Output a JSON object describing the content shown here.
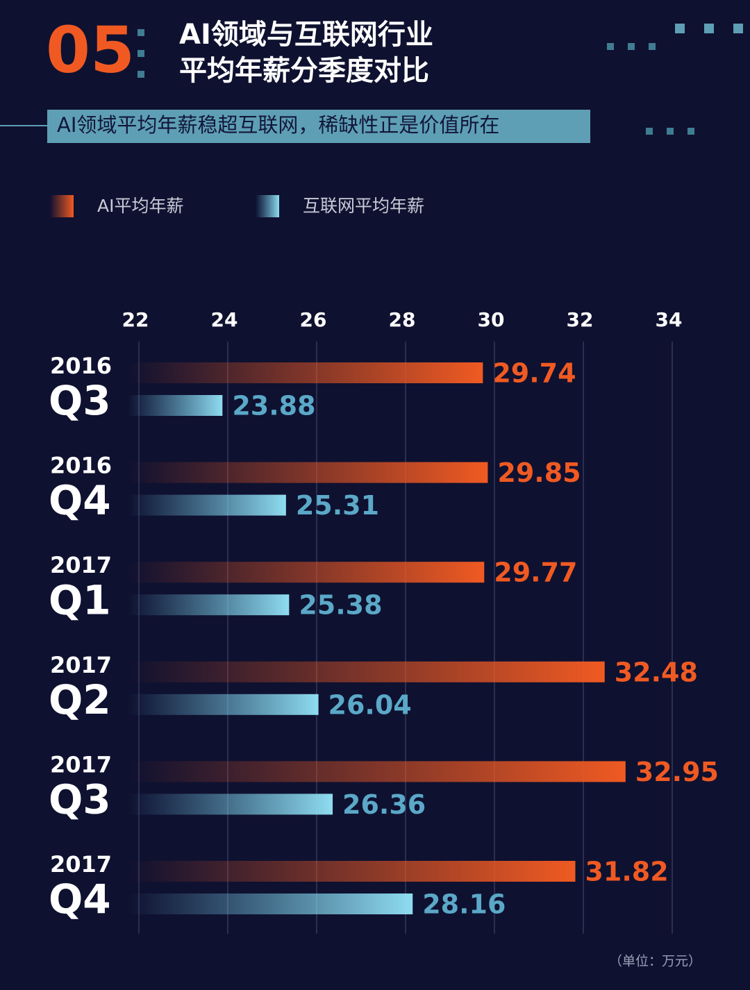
{
  "chart_data": {
    "type": "bar",
    "orientation": "horizontal",
    "section_number": "05",
    "title": [
      "AI领域与互联网行业",
      "平均年薪分季度对比"
    ],
    "subtitle": "AI领域平均年薪稳超互联网，稀缺性正是价值所在",
    "unit_note": "（单位：万元）",
    "categories": [
      [
        "2016",
        "Q3"
      ],
      [
        "2016",
        "Q4"
      ],
      [
        "2017",
        "Q1"
      ],
      [
        "2017",
        "Q2"
      ],
      [
        "2017",
        "Q3"
      ],
      [
        "2017",
        "Q4"
      ]
    ],
    "series": [
      {
        "name": "AI平均年薪",
        "color": "#f05a22",
        "values": [
          29.74,
          29.85,
          29.77,
          32.48,
          32.95,
          31.82
        ]
      },
      {
        "name": "互联网平均年薪",
        "color": "#6cc6e4",
        "values": [
          23.88,
          25.31,
          25.38,
          26.04,
          26.36,
          28.16
        ]
      }
    ],
    "xlim": [
      22,
      34
    ],
    "xticks": [
      22,
      24,
      26,
      28,
      30,
      32,
      34
    ],
    "grid": true
  }
}
